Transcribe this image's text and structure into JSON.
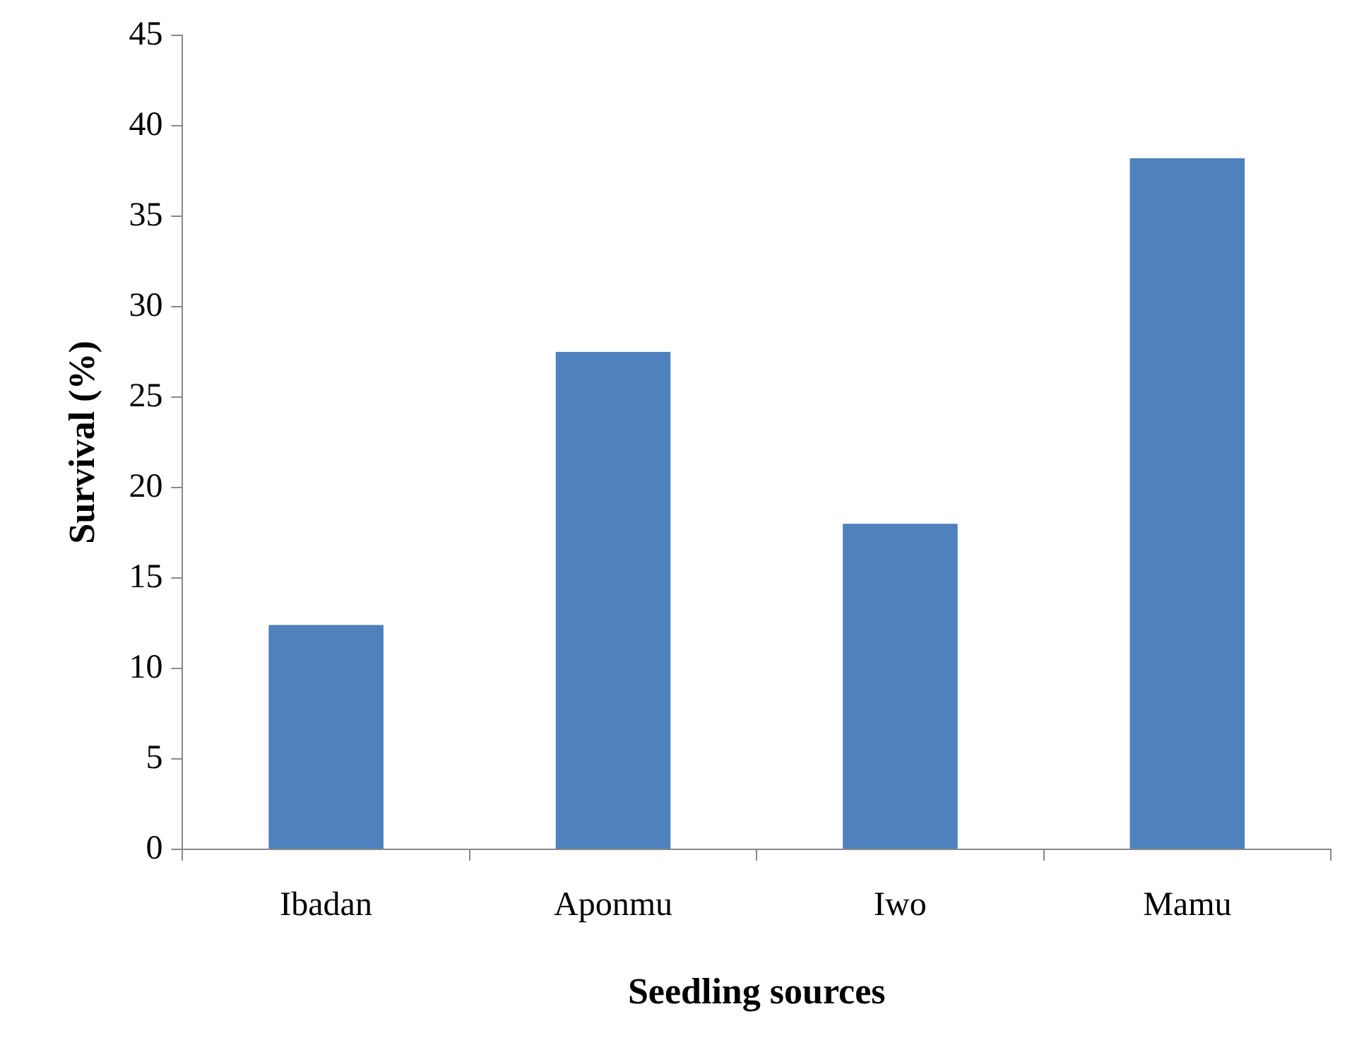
{
  "chart_data": {
    "type": "bar",
    "xlabel": "Seedling sources",
    "ylabel": "Survival (%)",
    "categories": [
      "Ibadan",
      "Aponmu",
      "Iwo",
      "Mamu"
    ],
    "values": [
      12.4,
      27.5,
      18,
      38.2
    ],
    "color": "#4f81bd",
    "ylim": [
      0,
      45
    ],
    "yticks": [
      0,
      5,
      10,
      15,
      20,
      25,
      30,
      35,
      40,
      45
    ],
    "grid": false,
    "legend": false
  }
}
